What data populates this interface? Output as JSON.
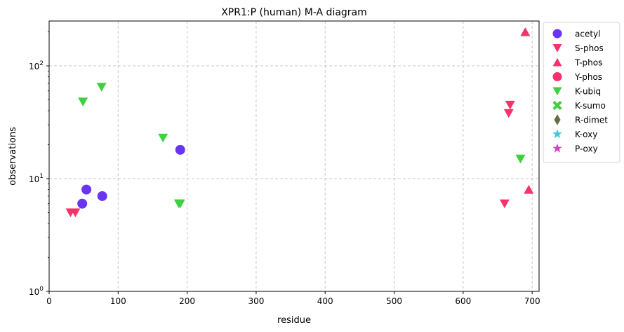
{
  "chart_data": {
    "type": "scatter",
    "title": "XPR1:P (human) M-A diagram",
    "xlabel": "residue",
    "ylabel": "observations",
    "xlim": [
      0,
      710
    ],
    "ylim": [
      1,
      250
    ],
    "yscale": "log",
    "grid": true,
    "legend_position": "outside-right",
    "x_ticks": [
      "0",
      "100",
      "200",
      "300",
      "400",
      "500",
      "600",
      "700"
    ],
    "y_ticks": [
      {
        "value": 1,
        "base": "10",
        "exp": "0"
      },
      {
        "value": 10,
        "base": "10",
        "exp": "1"
      },
      {
        "value": 100,
        "base": "10",
        "exp": "2"
      }
    ],
    "series": [
      {
        "name": "acetyl",
        "marker": "circle",
        "color": "#6a35f0",
        "points": [
          [
            48,
            6
          ],
          [
            54,
            8
          ],
          [
            77,
            7
          ],
          [
            190,
            18
          ]
        ]
      },
      {
        "name": "S-phos",
        "marker": "triangle-down",
        "color": "#f5336a",
        "points": [
          [
            31,
            5
          ],
          [
            38,
            5
          ],
          [
            660,
            6
          ],
          [
            666,
            38
          ],
          [
            668,
            45
          ]
        ]
      },
      {
        "name": "T-phos",
        "marker": "triangle-up",
        "color": "#f5336a",
        "points": [
          [
            690,
            200
          ],
          [
            695,
            8
          ]
        ]
      },
      {
        "name": "Y-phos",
        "marker": "circle",
        "color": "#f5336a",
        "points": []
      },
      {
        "name": "K-ubiq",
        "marker": "triangle-down",
        "color": "#3ed13e",
        "points": [
          [
            49,
            48
          ],
          [
            76,
            65
          ],
          [
            165,
            23
          ],
          [
            188,
            6
          ],
          [
            190,
            6
          ],
          [
            683,
            15
          ]
        ]
      },
      {
        "name": "K-sumo",
        "marker": "x-thick",
        "color": "#3ed13e",
        "points": []
      },
      {
        "name": "R-dimet",
        "marker": "diamond",
        "color": "#6b6b47",
        "points": []
      },
      {
        "name": "K-oxy",
        "marker": "star",
        "color": "#3ecbd6",
        "points": []
      },
      {
        "name": "P-oxy",
        "marker": "star",
        "color": "#c848c8",
        "points": []
      }
    ]
  }
}
